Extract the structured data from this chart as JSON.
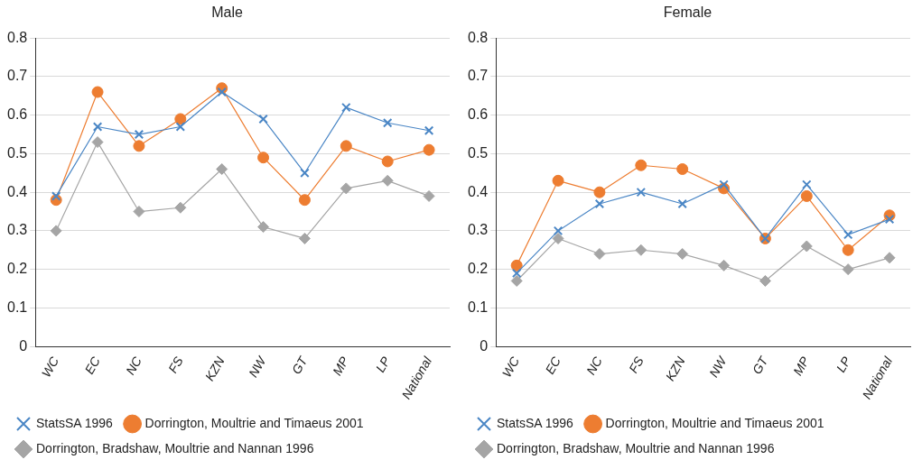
{
  "chart_data": [
    {
      "type": "line",
      "title": "Male",
      "categories": [
        "WC",
        "EC",
        "NC",
        "FS",
        "KZN",
        "NW",
        "GT",
        "MP",
        "LP",
        "National"
      ],
      "ylim": [
        0,
        0.8
      ],
      "yticks": [
        0,
        0.1,
        0.2,
        0.3,
        0.4,
        0.5,
        0.6,
        0.7,
        0.8
      ],
      "grid": "y",
      "legend": "bottom",
      "series": [
        {
          "name": "StatsSA 1996",
          "color": "#4a86c5",
          "marker": "cross",
          "values": [
            0.39,
            0.57,
            0.55,
            0.57,
            0.66,
            0.59,
            0.45,
            0.62,
            0.58,
            0.56
          ]
        },
        {
          "name": "Dorrington, Moultrie and Timaeus 2001",
          "color": "#ed7d31",
          "marker": "circle",
          "values": [
            0.38,
            0.66,
            0.52,
            0.59,
            0.67,
            0.49,
            0.38,
            0.52,
            0.48,
            0.51
          ]
        },
        {
          "name": "Dorrington, Bradshaw, Moultrie and Nannan 1996",
          "color": "#a5a5a5",
          "marker": "diamond",
          "values": [
            0.3,
            0.53,
            0.35,
            0.36,
            0.46,
            0.31,
            0.28,
            0.41,
            0.43,
            0.39
          ]
        }
      ]
    },
    {
      "type": "line",
      "title": "Female",
      "categories": [
        "WC",
        "EC",
        "NC",
        "FS",
        "KZN",
        "NW",
        "GT",
        "MP",
        "LP",
        "National"
      ],
      "ylim": [
        0,
        0.8
      ],
      "yticks": [
        0,
        0.1,
        0.2,
        0.3,
        0.4,
        0.5,
        0.6,
        0.7,
        0.8
      ],
      "grid": "y",
      "legend": "bottom",
      "series": [
        {
          "name": "StatsSA 1996",
          "color": "#4a86c5",
          "marker": "cross",
          "values": [
            0.19,
            0.3,
            0.37,
            0.4,
            0.37,
            0.42,
            0.28,
            0.42,
            0.29,
            0.33
          ]
        },
        {
          "name": "Dorrington, Moultrie and Timaeus 2001",
          "color": "#ed7d31",
          "marker": "circle",
          "values": [
            0.21,
            0.43,
            0.4,
            0.47,
            0.46,
            0.41,
            0.28,
            0.39,
            0.25,
            0.34
          ]
        },
        {
          "name": "Dorrington, Bradshaw, Moultrie and Nannan 1996",
          "color": "#a5a5a5",
          "marker": "diamond",
          "values": [
            0.17,
            0.28,
            0.24,
            0.25,
            0.24,
            0.21,
            0.17,
            0.26,
            0.2,
            0.23
          ]
        }
      ]
    }
  ]
}
